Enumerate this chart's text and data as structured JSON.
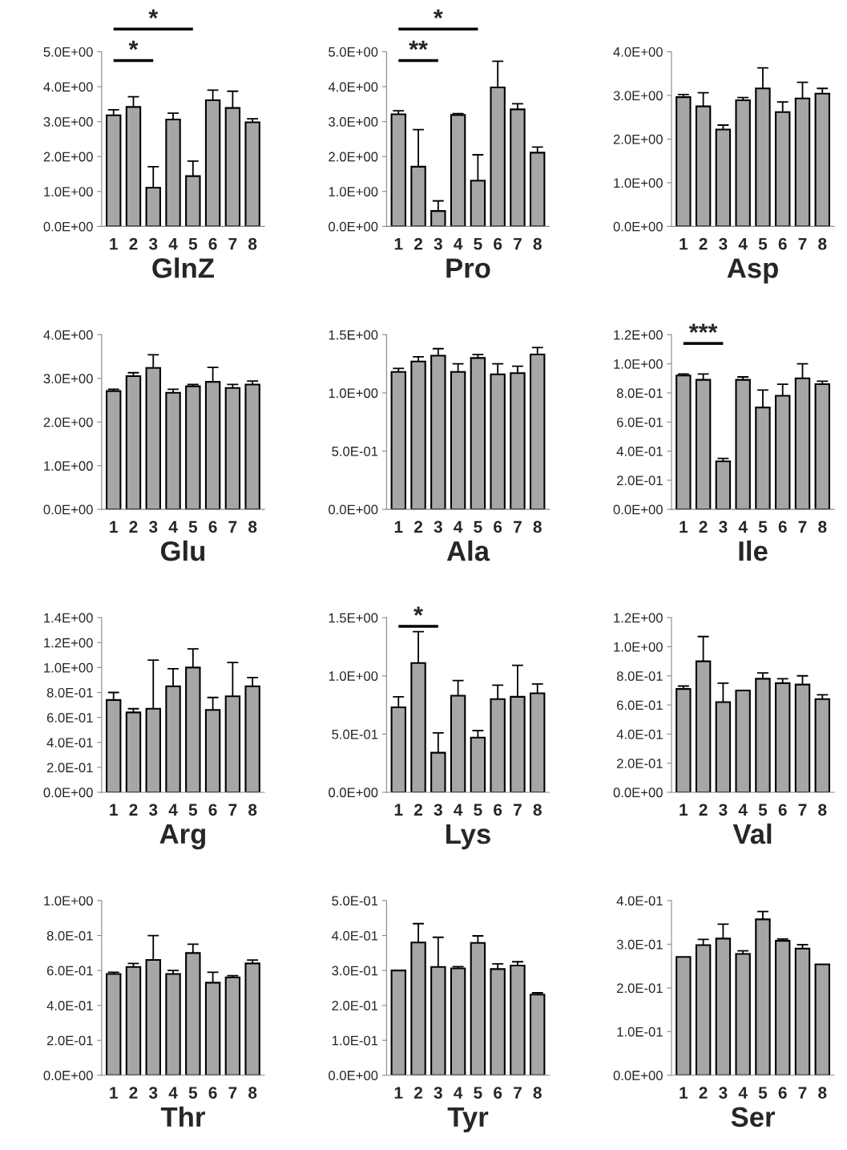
{
  "chart_data": [
    {
      "type": "bar",
      "xlabel": "GlnZ",
      "categories": [
        "1",
        "2",
        "3",
        "4",
        "5",
        "6",
        "7",
        "8"
      ],
      "color": "#a6a6a6",
      "values": [
        3.18,
        3.42,
        1.11,
        3.06,
        1.44,
        3.61,
        3.39,
        2.98
      ],
      "errors": [
        0.16,
        0.29,
        0.6,
        0.18,
        0.43,
        0.29,
        0.48,
        0.1
      ],
      "ylim": [
        0,
        5
      ],
      "yticks": [
        {
          "value": 0,
          "label": "0.0E+00"
        },
        {
          "value": 1,
          "label": "1.0E+00"
        },
        {
          "value": 2,
          "label": "2.0E+00"
        },
        {
          "value": 3,
          "label": "3.0E+00"
        },
        {
          "value": 4,
          "label": "4.0E+00"
        },
        {
          "value": 5,
          "label": "5.0E+00"
        }
      ],
      "annotations": [
        "*",
        "*"
      ]
    },
    {
      "type": "bar",
      "xlabel": "Pro",
      "categories": [
        "1",
        "2",
        "3",
        "4",
        "5",
        "6",
        "7",
        "8"
      ],
      "color": "#a6a6a6",
      "values": [
        3.21,
        1.71,
        0.44,
        3.19,
        1.31,
        3.98,
        3.35,
        2.11
      ],
      "errors": [
        0.1,
        1.06,
        0.29,
        0.04,
        0.74,
        0.75,
        0.16,
        0.16
      ],
      "ylim": [
        0,
        5
      ],
      "yticks": [
        {
          "value": 0,
          "label": "0.0E+00"
        },
        {
          "value": 1,
          "label": "1.0E+00"
        },
        {
          "value": 2,
          "label": "2.0E+00"
        },
        {
          "value": 3,
          "label": "3.0E+00"
        },
        {
          "value": 4,
          "label": "4.0E+00"
        },
        {
          "value": 5,
          "label": "5.0E+00"
        }
      ],
      "annotations": [
        "**",
        "*"
      ]
    },
    {
      "type": "bar",
      "xlabel": "Asp",
      "categories": [
        "1",
        "2",
        "3",
        "4",
        "5",
        "6",
        "7",
        "8"
      ],
      "color": "#a6a6a6",
      "values": [
        2.96,
        2.75,
        2.22,
        2.89,
        3.16,
        2.62,
        2.93,
        3.04
      ],
      "errors": [
        0.06,
        0.31,
        0.1,
        0.06,
        0.47,
        0.23,
        0.37,
        0.12
      ],
      "ylim": [
        0,
        4
      ],
      "yticks": [
        {
          "value": 0,
          "label": "0.0E+00"
        },
        {
          "value": 1,
          "label": "1.0E+00"
        },
        {
          "value": 2,
          "label": "2.0E+00"
        },
        {
          "value": 3,
          "label": "3.0E+00"
        },
        {
          "value": 4,
          "label": "4.0E+00"
        }
      ]
    },
    {
      "type": "bar",
      "xlabel": "Glu",
      "categories": [
        "1",
        "2",
        "3",
        "4",
        "5",
        "6",
        "7",
        "8"
      ],
      "color": "#a6a6a6",
      "values": [
        2.71,
        3.05,
        3.24,
        2.67,
        2.82,
        2.92,
        2.78,
        2.86
      ],
      "errors": [
        0.04,
        0.08,
        0.3,
        0.08,
        0.04,
        0.33,
        0.08,
        0.08
      ],
      "ylim": [
        0,
        4
      ],
      "yticks": [
        {
          "value": 0,
          "label": "0.0E+00"
        },
        {
          "value": 1,
          "label": "1.0E+00"
        },
        {
          "value": 2,
          "label": "2.0E+00"
        },
        {
          "value": 3,
          "label": "3.0E+00"
        },
        {
          "value": 4,
          "label": "4.0E+00"
        }
      ]
    },
    {
      "type": "bar",
      "xlabel": "Ala",
      "categories": [
        "1",
        "2",
        "3",
        "4",
        "5",
        "6",
        "7",
        "8"
      ],
      "color": "#a6a6a6",
      "values": [
        1.18,
        1.27,
        1.32,
        1.18,
        1.3,
        1.16,
        1.17,
        1.33
      ],
      "errors": [
        0.03,
        0.04,
        0.06,
        0.07,
        0.03,
        0.09,
        0.06,
        0.06
      ],
      "ylim": [
        0,
        1.5
      ],
      "yticks": [
        {
          "value": 0,
          "label": "0.0E+00"
        },
        {
          "value": 0.5,
          "label": "5.0E-01"
        },
        {
          "value": 1,
          "label": "1.0E+00"
        },
        {
          "value": 1.5,
          "label": "1.5E+00"
        }
      ]
    },
    {
      "type": "bar",
      "xlabel": "Ile",
      "categories": [
        "1",
        "2",
        "3",
        "4",
        "5",
        "6",
        "7",
        "8"
      ],
      "color": "#a6a6a6",
      "values": [
        0.92,
        0.89,
        0.33,
        0.89,
        0.7,
        0.78,
        0.9,
        0.86
      ],
      "errors": [
        0.01,
        0.04,
        0.02,
        0.02,
        0.12,
        0.08,
        0.1,
        0.02
      ],
      "ylim": [
        0,
        1.2
      ],
      "yticks": [
        {
          "value": 0,
          "label": "0.0E+00"
        },
        {
          "value": 0.2,
          "label": "2.0E-01"
        },
        {
          "value": 0.4,
          "label": "4.0E-01"
        },
        {
          "value": 0.6,
          "label": "6.0E-01"
        },
        {
          "value": 0.8,
          "label": "8.0E-01"
        },
        {
          "value": 1.0,
          "label": "1.0E+00"
        },
        {
          "value": 1.2,
          "label": "1.2E+00"
        }
      ],
      "annotations": [
        "***"
      ]
    },
    {
      "type": "bar",
      "xlabel": "Arg",
      "categories": [
        "1",
        "2",
        "3",
        "4",
        "5",
        "6",
        "7",
        "8"
      ],
      "color": "#a6a6a6",
      "values": [
        0.74,
        0.64,
        0.67,
        0.85,
        1.0,
        0.66,
        0.77,
        0.85
      ],
      "errors": [
        0.06,
        0.03,
        0.39,
        0.14,
        0.15,
        0.1,
        0.27,
        0.07
      ],
      "ylim": [
        0,
        1.4
      ],
      "yticks": [
        {
          "value": 0,
          "label": "0.0E+00"
        },
        {
          "value": 0.2,
          "label": "2.0E-01"
        },
        {
          "value": 0.4,
          "label": "4.0E-01"
        },
        {
          "value": 0.6,
          "label": "6.0E-01"
        },
        {
          "value": 0.8,
          "label": "8.0E-01"
        },
        {
          "value": 1.0,
          "label": "1.0E+00"
        },
        {
          "value": 1.2,
          "label": "1.2E+00"
        },
        {
          "value": 1.4,
          "label": "1.4E+00"
        }
      ]
    },
    {
      "type": "bar",
      "xlabel": "Lys",
      "categories": [
        "1",
        "2",
        "3",
        "4",
        "5",
        "6",
        "7",
        "8"
      ],
      "color": "#a6a6a6",
      "values": [
        0.73,
        1.11,
        0.34,
        0.83,
        0.47,
        0.8,
        0.82,
        0.85
      ],
      "errors": [
        0.09,
        0.27,
        0.17,
        0.13,
        0.06,
        0.12,
        0.27,
        0.08
      ],
      "ylim": [
        0,
        1.5
      ],
      "yticks": [
        {
          "value": 0,
          "label": "0.0E+00"
        },
        {
          "value": 0.5,
          "label": "5.0E-01"
        },
        {
          "value": 1,
          "label": "1.0E+00"
        },
        {
          "value": 1.5,
          "label": "1.5E+00"
        }
      ],
      "annotations": [
        "*"
      ]
    },
    {
      "type": "bar",
      "xlabel": "Val",
      "categories": [
        "1",
        "2",
        "3",
        "4",
        "5",
        "6",
        "7",
        "8"
      ],
      "color": "#a6a6a6",
      "values": [
        0.71,
        0.9,
        0.62,
        0.7,
        0.78,
        0.75,
        0.74,
        0.64
      ],
      "errors": [
        0.02,
        0.17,
        0.13,
        null,
        0.04,
        0.03,
        0.06,
        0.03
      ],
      "ylim": [
        0,
        1.2
      ],
      "yticks": [
        {
          "value": 0,
          "label": "0.0E+00"
        },
        {
          "value": 0.2,
          "label": "2.0E-01"
        },
        {
          "value": 0.4,
          "label": "4.0E-01"
        },
        {
          "value": 0.6,
          "label": "6.0E-01"
        },
        {
          "value": 0.8,
          "label": "8.0E-01"
        },
        {
          "value": 1.0,
          "label": "1.0E+00"
        },
        {
          "value": 1.2,
          "label": "1.2E+00"
        }
      ]
    },
    {
      "type": "bar",
      "xlabel": "Thr",
      "categories": [
        "1",
        "2",
        "3",
        "4",
        "5",
        "6",
        "7",
        "8"
      ],
      "color": "#a6a6a6",
      "values": [
        0.58,
        0.62,
        0.66,
        0.58,
        0.7,
        0.53,
        0.56,
        0.64
      ],
      "errors": [
        0.01,
        0.02,
        0.14,
        0.02,
        0.05,
        0.06,
        0.01,
        0.02
      ],
      "ylim": [
        0,
        1.0
      ],
      "yticks": [
        {
          "value": 0,
          "label": "0.0E+00"
        },
        {
          "value": 0.2,
          "label": "2.0E-01"
        },
        {
          "value": 0.4,
          "label": "4.0E-01"
        },
        {
          "value": 0.6,
          "label": "6.0E-01"
        },
        {
          "value": 0.8,
          "label": "8.0E-01"
        },
        {
          "value": 1.0,
          "label": "1.0E+00"
        }
      ]
    },
    {
      "type": "bar",
      "xlabel": "Tyr",
      "categories": [
        "1",
        "2",
        "3",
        "4",
        "5",
        "6",
        "7",
        "8"
      ],
      "color": "#a6a6a6",
      "values": [
        0.3,
        0.38,
        0.31,
        0.306,
        0.379,
        0.304,
        0.314,
        0.231
      ],
      "errors": [
        null,
        0.054,
        0.085,
        0.005,
        0.02,
        0.015,
        0.011,
        0.005
      ],
      "ylim": [
        0,
        0.5
      ],
      "yticks": [
        {
          "value": 0,
          "label": "0.0E+00"
        },
        {
          "value": 0.1,
          "label": "1.0E-01"
        },
        {
          "value": 0.2,
          "label": "2.0E-01"
        },
        {
          "value": 0.3,
          "label": "3.0E-01"
        },
        {
          "value": 0.4,
          "label": "4.0E-01"
        },
        {
          "value": 0.5,
          "label": "5.0E-01"
        }
      ]
    },
    {
      "type": "bar",
      "xlabel": "Ser",
      "categories": [
        "1",
        "2",
        "3",
        "4",
        "5",
        "6",
        "7",
        "8"
      ],
      "color": "#a6a6a6",
      "values": [
        0.271,
        0.298,
        0.313,
        0.278,
        0.357,
        0.308,
        0.29,
        0.254
      ],
      "errors": [
        null,
        0.013,
        0.033,
        0.007,
        0.018,
        0.004,
        0.009,
        null
      ],
      "ylim": [
        0,
        0.4
      ],
      "yticks": [
        {
          "value": 0,
          "label": "0.0E+00"
        },
        {
          "value": 0.1,
          "label": "1.0E-01"
        },
        {
          "value": 0.2,
          "label": "2.0E-01"
        },
        {
          "value": 0.3,
          "label": "3.0E-01"
        },
        {
          "value": 0.4,
          "label": "4.0E-01"
        }
      ]
    }
  ]
}
